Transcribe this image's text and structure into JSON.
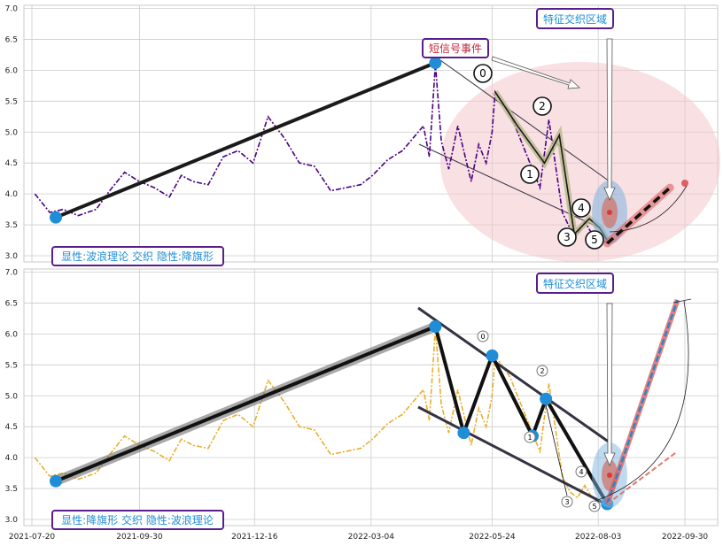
{
  "colors": {
    "price_top": "#4b0082",
    "price_bottom": "#e8b030",
    "wave_line": "#1a1a1a",
    "dot": "#1f8ed6",
    "label_border": "#5a1e8c",
    "label_text_blue": "#1f8ed6",
    "label_text_red": "#c0263a",
    "zone_fill": "#f3c6cc",
    "channel": "#333344",
    "target_red": "#e06060",
    "target_blue": "#2a86c8"
  },
  "chart_data": [
    {
      "type": "line",
      "ylim": [
        2.9,
        7.05
      ],
      "yticks": [
        "3.0",
        "3.5",
        "4.0",
        "4.5",
        "5.0",
        "5.5",
        "6.0",
        "6.5",
        "7.0"
      ],
      "grid": true,
      "labels": {
        "signal_event": "短信号事件",
        "feature_zone": "特征交织区域",
        "pattern": "显性:波浪理论 交织 隐性:降旗形"
      },
      "price_series": {
        "x": [
          "2021-07-22",
          "2021-08-01",
          "2021-08-10",
          "2021-08-20",
          "2021-09-01",
          "2021-09-10",
          "2021-09-20",
          "2021-09-30",
          "2021-10-10",
          "2021-10-20",
          "2021-10-28",
          "2021-11-05",
          "2021-11-15",
          "2021-11-25",
          "2021-12-05",
          "2021-12-15",
          "2021-12-25",
          "2022-01-05",
          "2022-01-15",
          "2022-01-25",
          "2022-02-05",
          "2022-02-15",
          "2022-02-25",
          "2022-03-05",
          "2022-03-15",
          "2022-03-25",
          "2022-04-01",
          "2022-04-08",
          "2022-04-12",
          "2022-04-16",
          "2022-04-20",
          "2022-04-25",
          "2022-05-01",
          "2022-05-10",
          "2022-05-15",
          "2022-05-20",
          "2022-05-24",
          "2022-05-26",
          "2022-06-05",
          "2022-06-15",
          "2022-06-25",
          "2022-07-01",
          "2022-07-10",
          "2022-07-15",
          "2022-07-20",
          "2022-07-25",
          "2022-07-30",
          "2022-08-05",
          "2022-08-09"
        ],
        "y": [
          4.0,
          3.7,
          3.75,
          3.65,
          3.75,
          4.05,
          4.35,
          4.2,
          4.1,
          3.95,
          4.3,
          4.2,
          4.15,
          4.6,
          4.7,
          4.5,
          5.25,
          4.9,
          4.5,
          4.45,
          4.05,
          4.1,
          4.15,
          4.3,
          4.55,
          4.7,
          4.9,
          5.1,
          4.6,
          6.1,
          4.85,
          4.4,
          5.1,
          4.2,
          4.8,
          4.5,
          5.0,
          5.65,
          5.3,
          4.7,
          4.1,
          5.2,
          3.7,
          3.45,
          3.35,
          3.55,
          3.35,
          3.3,
          3.2
        ]
      },
      "wave_points": [
        {
          "x": "2021-08-05",
          "y": 3.62
        },
        {
          "x": "2022-04-16",
          "y": 6.12
        }
      ],
      "wave_numbers": [
        "0",
        "1",
        "2",
        "3",
        "4",
        "5"
      ],
      "wave_path": {
        "x": [
          "2022-05-26",
          "2022-06-10",
          "2022-06-28",
          "2022-07-08",
          "2022-07-18",
          "2022-07-28",
          "2022-08-04",
          "2022-08-09"
        ],
        "y": [
          5.65,
          5.1,
          4.5,
          4.95,
          3.35,
          3.6,
          3.45,
          3.25
        ]
      },
      "target_line": {
        "x": [
          "2022-08-09",
          "2022-09-20"
        ],
        "y": [
          3.2,
          4.1
        ]
      }
    },
    {
      "type": "line",
      "ylim": [
        2.9,
        7.05
      ],
      "yticks": [
        "3.0",
        "3.5",
        "4.0",
        "4.5",
        "5.0",
        "5.5",
        "6.0",
        "6.5",
        "7.0"
      ],
      "xticks": [
        "2021-07-20",
        "2021-09-30",
        "2021-12-16",
        "2022-03-04",
        "2022-05-24",
        "2022-08-03",
        "2022-09-30"
      ],
      "grid": true,
      "labels": {
        "feature_zone": "特征交织区域",
        "pattern": "显性:降旗形 交织 隐性:波浪理论"
      },
      "wave_numbers": [
        "0",
        "1",
        "2",
        "3",
        "4",
        "5"
      ],
      "flag_points": {
        "x": [
          "2021-08-05",
          "2022-04-16",
          "2022-05-05",
          "2022-05-24",
          "2022-06-20",
          "2022-06-29",
          "2022-08-09"
        ],
        "y": [
          3.62,
          6.12,
          4.4,
          5.65,
          4.35,
          4.95,
          3.25
        ]
      },
      "target_up": {
        "x": [
          "2022-08-09",
          "2022-09-25"
        ],
        "y": [
          3.25,
          6.55
        ]
      },
      "target_low": {
        "x": [
          "2022-08-09",
          "2022-09-25"
        ],
        "y": [
          3.25,
          4.1
        ]
      }
    }
  ]
}
